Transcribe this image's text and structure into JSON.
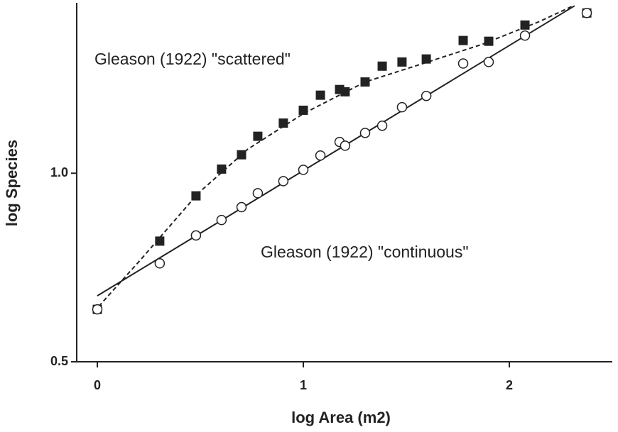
{
  "chart_data": {
    "type": "scatter",
    "x_label": "log Area (m2)",
    "y_label": "log Species",
    "xlim": [
      -0.1,
      2.5
    ],
    "ylim": [
      0.5,
      1.45
    ],
    "xticks": [
      0,
      1,
      2
    ],
    "yticks": [
      0.5,
      {
        "value": 1,
        "label": "1.0"
      }
    ],
    "series": [
      {
        "name": "Gleason (1922) \"scattered\"",
        "marker": "square",
        "color": "#222222",
        "line": "dashed",
        "x": [
          0,
          0.303,
          0.479,
          0.603,
          0.7,
          0.779,
          0.903,
          1.0,
          1.083,
          1.176,
          1.203,
          1.3,
          1.383,
          1.479,
          1.597,
          1.776,
          1.9,
          2.076,
          2.376
        ],
        "values": [
          0.639,
          0.82,
          0.94,
          1.011,
          1.049,
          1.098,
          1.133,
          1.167,
          1.207,
          1.222,
          1.216,
          1.242,
          1.284,
          1.295,
          1.303,
          1.352,
          1.35,
          1.393,
          1.425
        ],
        "fit": {
          "x": [
            0.007,
            0.214,
            0.49,
            0.731,
            1.0,
            1.3,
            1.593,
            1.869,
            2.145,
            2.31
          ],
          "values": [
            0.647,
            0.773,
            0.947,
            1.064,
            1.158,
            1.242,
            1.293,
            1.342,
            1.402,
            1.444
          ]
        }
      },
      {
        "name": "Gleason (1922) \"continuous\"",
        "marker": "circle",
        "color": "#222222",
        "line": "solid",
        "x": [
          0,
          0.303,
          0.479,
          0.603,
          0.7,
          0.779,
          0.903,
          1.0,
          1.083,
          1.176,
          1.203,
          1.3,
          1.383,
          1.479,
          1.597,
          1.776,
          1.9,
          2.076,
          2.376
        ],
        "values": [
          0.639,
          0.761,
          0.835,
          0.876,
          0.91,
          0.947,
          0.979,
          1.009,
          1.047,
          1.083,
          1.073,
          1.107,
          1.126,
          1.175,
          1.205,
          1.291,
          1.295,
          1.365,
          1.425
        ],
        "fit": {
          "x": [
            0,
            2.317
          ],
          "values": [
            0.675,
            1.444
          ]
        }
      }
    ]
  }
}
